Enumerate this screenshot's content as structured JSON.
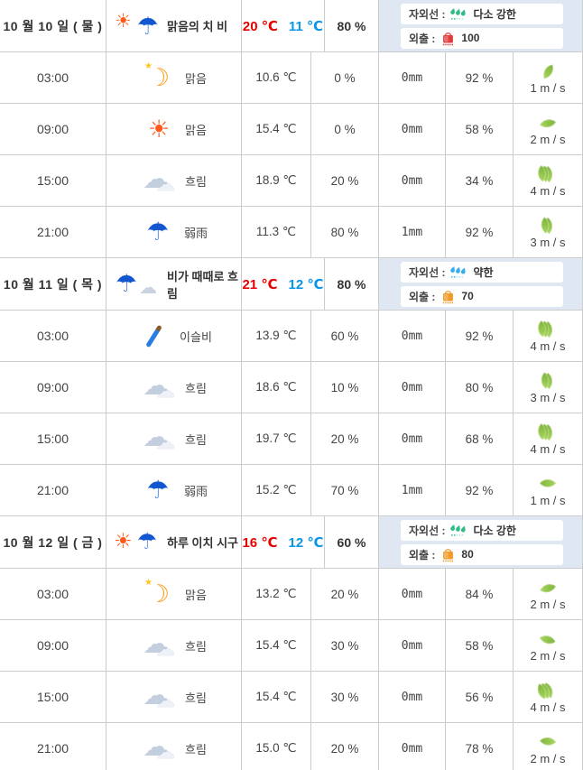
{
  "colors": {
    "high_temp": "#e60000",
    "low_temp": "#0a96e8",
    "uv_strong_green": "#2ebd85",
    "uv_weak_blue": "#35aef0",
    "outing_red": "#e03c3c",
    "outing_orange": "#f09a28",
    "wind_leaf_green": "#8dc63f",
    "header_panel_bg": "#dfe7f3"
  },
  "table": {
    "days": [
      {
        "date": "10 월 10 일 ( 물 )",
        "summary": {
          "icon": "sun-to-rain",
          "label": "맑음의 치 비",
          "high": "20 ℃",
          "low": "11 ℃",
          "rain": "80 %"
        },
        "uv": {
          "label": "자외선 :",
          "level": "다소 강한",
          "color": "#2ebd85"
        },
        "outing": {
          "label": "외출 :",
          "score": "100",
          "color": "#e03c3c"
        },
        "rows": [
          {
            "time": "03:00",
            "icon": "moon",
            "label": "맑음",
            "temp": "10.6 ℃",
            "rain": "0 %",
            "precip": "0mm",
            "humidity": "92 %",
            "wind": "1 m / s",
            "leaves": 1,
            "rot": 255
          },
          {
            "time": "09:00",
            "icon": "sun",
            "label": "맑음",
            "temp": "15.4 ℃",
            "rain": "0 %",
            "precip": "0mm",
            "humidity": "58 %",
            "wind": "2 m / s",
            "leaves": 1,
            "rot": 305
          },
          {
            "time": "15:00",
            "icon": "cloud",
            "label": "흐림",
            "temp": "18.9 ℃",
            "rain": "20 %",
            "precip": "0mm",
            "humidity": "34 %",
            "wind": "4 m / s",
            "leaves": 3,
            "rot": 220
          },
          {
            "time": "21:00",
            "icon": "umbrella",
            "label": "弱雨",
            "temp": "11.3 ℃",
            "rain": "80 %",
            "precip": "1mm",
            "humidity": "92 %",
            "wind": "3 m / s",
            "leaves": 2,
            "rot": 220
          }
        ]
      },
      {
        "date": "10 월 11 일 ( 목 )",
        "summary": {
          "icon": "umbrella-cloud",
          "label": "비가 때때로 흐림",
          "high": "21 ℃",
          "low": "12 ℃",
          "rain": "80 %"
        },
        "uv": {
          "label": "자외선 :",
          "level": "약한",
          "color": "#35aef0"
        },
        "outing": {
          "label": "외출 :",
          "score": "70",
          "color": "#f09a28"
        },
        "rows": [
          {
            "time": "03:00",
            "icon": "drizzle",
            "label": "이슬비",
            "temp": "13.9 ℃",
            "rain": "60 %",
            "precip": "0mm",
            "humidity": "92 %",
            "wind": "4 m / s",
            "leaves": 3,
            "rot": 220
          },
          {
            "time": "09:00",
            "icon": "cloud",
            "label": "흐림",
            "temp": "18.6 ℃",
            "rain": "10 %",
            "precip": "0mm",
            "humidity": "80 %",
            "wind": "3 m / s",
            "leaves": 2,
            "rot": 220
          },
          {
            "time": "15:00",
            "icon": "cloud",
            "label": "흐림",
            "temp": "19.7 ℃",
            "rain": "20 %",
            "precip": "0mm",
            "humidity": "68 %",
            "wind": "4 m / s",
            "leaves": 3,
            "rot": 220
          },
          {
            "time": "21:00",
            "icon": "umbrella",
            "label": "弱雨",
            "temp": "15.2 ℃",
            "rain": "70 %",
            "precip": "1mm",
            "humidity": "92 %",
            "wind": "1 m / s",
            "leaves": 1,
            "rot": 135
          }
        ]
      },
      {
        "date": "10 월 12 일 ( 금 )",
        "summary": {
          "icon": "sun-umbrella",
          "label": "하루 이치 시구",
          "high": "16 ℃",
          "low": "12 ℃",
          "rain": "60 %"
        },
        "uv": {
          "label": "자외선 :",
          "level": "다소 강한",
          "color": "#2ebd85"
        },
        "outing": {
          "label": "외출 :",
          "score": "80",
          "color": "#f09a28"
        },
        "rows": [
          {
            "time": "03:00",
            "icon": "moon",
            "label": "맑음",
            "temp": "13.2 ℃",
            "rain": "20 %",
            "precip": "0mm",
            "humidity": "84 %",
            "wind": "2 m / s",
            "leaves": 1,
            "rot": 300
          },
          {
            "time": "09:00",
            "icon": "cloud",
            "label": "흐림",
            "temp": "15.4 ℃",
            "rain": "30 %",
            "precip": "0mm",
            "humidity": "58 %",
            "wind": "2 m / s",
            "leaves": 1,
            "rot": 330
          },
          {
            "time": "15:00",
            "icon": "cloud",
            "label": "흐림",
            "temp": "15.4 ℃",
            "rain": "30 %",
            "precip": "0mm",
            "humidity": "56 %",
            "wind": "4 m / s",
            "leaves": 3,
            "rot": 205
          },
          {
            "time": "21:00",
            "icon": "cloud",
            "label": "흐림",
            "temp": "15.0 ℃",
            "rain": "20 %",
            "precip": "0mm",
            "humidity": "78 %",
            "wind": "2 m / s",
            "leaves": 1,
            "rot": 140
          }
        ]
      }
    ]
  }
}
